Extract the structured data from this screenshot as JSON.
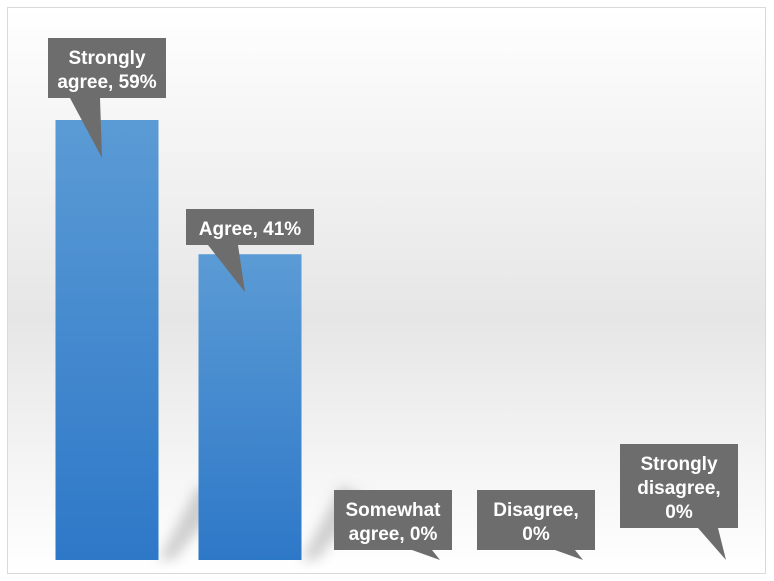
{
  "chart_data": {
    "type": "bar",
    "categories": [
      "Strongly agree",
      "Agree",
      "Somewhat agree",
      "Disagree",
      "Strongly disagree"
    ],
    "values": [
      59,
      41,
      0,
      0,
      0
    ],
    "unit": "%",
    "data_labels": [
      [
        "Strongly",
        "agree, 59%"
      ],
      [
        "Agree, 41%"
      ],
      [
        "Somewhat",
        "agree, 0%"
      ],
      [
        "Disagree,",
        "0%"
      ],
      [
        "Strongly",
        "disagree,",
        "0%"
      ]
    ],
    "title": "",
    "xlabel": "",
    "ylabel": "",
    "ylim": [
      0,
      59
    ],
    "grid": false,
    "legend": "none",
    "colors": {
      "bar_top": "#5b9bd5",
      "bar_bottom": "#2e78c8",
      "callout": "#6d6d6d",
      "callout_text": "#ffffff"
    }
  }
}
